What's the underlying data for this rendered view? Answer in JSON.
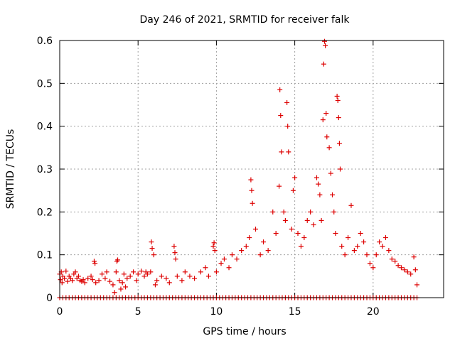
{
  "chart_data": {
    "type": "scatter",
    "title": "Day 246 of 2021, SRMTID for receiver falk",
    "xlabel": "GPS time / hours",
    "ylabel": "SRMTID / TECUs",
    "xlim": [
      0,
      24.5
    ],
    "ylim": [
      0,
      0.6
    ],
    "xticks": [
      0,
      5,
      10,
      15,
      20
    ],
    "yticks": [
      0,
      0.1,
      0.2,
      0.3,
      0.4,
      0.5,
      0.6
    ],
    "xtick_labels": [
      "0",
      "5",
      "10",
      "15",
      "20"
    ],
    "ytick_labels": [
      "0",
      "0.1",
      "0.2",
      "0.3",
      "0.4",
      "0.5",
      "0.6"
    ],
    "grid": true,
    "marker": "+",
    "marker_color": "#dd0000",
    "series": [
      {
        "name": "SRMTID",
        "points": [
          [
            0.0,
            0.055
          ],
          [
            0.05,
            0.042
          ],
          [
            0.1,
            0.06
          ],
          [
            0.15,
            0.035
          ],
          [
            0.2,
            0.05
          ],
          [
            0.3,
            0.045
          ],
          [
            0.4,
            0.062
          ],
          [
            0.5,
            0.038
          ],
          [
            0.6,
            0.05
          ],
          [
            0.7,
            0.045
          ],
          [
            0.8,
            0.04
          ],
          [
            0.9,
            0.055
          ],
          [
            1.0,
            0.06
          ],
          [
            1.1,
            0.045
          ],
          [
            1.2,
            0.05
          ],
          [
            1.3,
            0.04
          ],
          [
            1.4,
            0.038
          ],
          [
            1.5,
            0.042
          ],
          [
            1.6,
            0.035
          ],
          [
            1.8,
            0.045
          ],
          [
            2.0,
            0.05
          ],
          [
            2.1,
            0.042
          ],
          [
            2.2,
            0.085
          ],
          [
            2.25,
            0.08
          ],
          [
            2.3,
            0.035
          ],
          [
            2.5,
            0.04
          ],
          [
            2.7,
            0.055
          ],
          [
            2.9,
            0.045
          ],
          [
            3.0,
            0.06
          ],
          [
            3.2,
            0.038
          ],
          [
            3.4,
            0.03
          ],
          [
            3.5,
            0.012
          ],
          [
            3.6,
            0.06
          ],
          [
            3.65,
            0.085
          ],
          [
            3.7,
            0.088
          ],
          [
            3.8,
            0.04
          ],
          [
            3.9,
            0.02
          ],
          [
            4.0,
            0.035
          ],
          [
            4.1,
            0.055
          ],
          [
            4.2,
            0.025
          ],
          [
            4.3,
            0.045
          ],
          [
            4.5,
            0.05
          ],
          [
            4.7,
            0.06
          ],
          [
            4.9,
            0.04
          ],
          [
            5.0,
            0.055
          ],
          [
            5.2,
            0.062
          ],
          [
            5.4,
            0.05
          ],
          [
            5.5,
            0.06
          ],
          [
            5.6,
            0.055
          ],
          [
            5.8,
            0.06
          ],
          [
            5.85,
            0.13
          ],
          [
            5.9,
            0.115
          ],
          [
            6.0,
            0.1
          ],
          [
            6.1,
            0.03
          ],
          [
            6.2,
            0.04
          ],
          [
            6.5,
            0.05
          ],
          [
            6.8,
            0.045
          ],
          [
            7.0,
            0.035
          ],
          [
            7.3,
            0.12
          ],
          [
            7.35,
            0.105
          ],
          [
            7.4,
            0.09
          ],
          [
            7.5,
            0.05
          ],
          [
            7.8,
            0.04
          ],
          [
            8.0,
            0.06
          ],
          [
            8.3,
            0.05
          ],
          [
            8.6,
            0.045
          ],
          [
            9.0,
            0.06
          ],
          [
            9.3,
            0.07
          ],
          [
            9.5,
            0.05
          ],
          [
            9.8,
            0.12
          ],
          [
            9.85,
            0.128
          ],
          [
            9.9,
            0.11
          ],
          [
            10.0,
            0.06
          ],
          [
            10.3,
            0.08
          ],
          [
            10.5,
            0.09
          ],
          [
            10.8,
            0.07
          ],
          [
            11.0,
            0.1
          ],
          [
            11.3,
            0.09
          ],
          [
            11.6,
            0.11
          ],
          [
            11.9,
            0.12
          ],
          [
            12.1,
            0.14
          ],
          [
            12.2,
            0.275
          ],
          [
            12.25,
            0.25
          ],
          [
            12.3,
            0.22
          ],
          [
            12.5,
            0.16
          ],
          [
            12.8,
            0.1
          ],
          [
            13.0,
            0.13
          ],
          [
            13.3,
            0.11
          ],
          [
            13.6,
            0.2
          ],
          [
            13.8,
            0.15
          ],
          [
            14.0,
            0.26
          ],
          [
            14.05,
            0.485
          ],
          [
            14.1,
            0.425
          ],
          [
            14.15,
            0.34
          ],
          [
            14.3,
            0.2
          ],
          [
            14.4,
            0.18
          ],
          [
            14.5,
            0.455
          ],
          [
            14.55,
            0.4
          ],
          [
            14.6,
            0.34
          ],
          [
            14.8,
            0.16
          ],
          [
            14.9,
            0.25
          ],
          [
            15.0,
            0.28
          ],
          [
            15.2,
            0.15
          ],
          [
            15.4,
            0.12
          ],
          [
            15.6,
            0.14
          ],
          [
            15.8,
            0.18
          ],
          [
            16.0,
            0.2
          ],
          [
            16.2,
            0.17
          ],
          [
            16.4,
            0.28
          ],
          [
            16.5,
            0.265
          ],
          [
            16.6,
            0.24
          ],
          [
            16.7,
            0.18
          ],
          [
            16.8,
            0.415
          ],
          [
            16.85,
            0.545
          ],
          [
            16.9,
            0.598
          ],
          [
            16.95,
            0.588
          ],
          [
            17.0,
            0.43
          ],
          [
            17.05,
            0.375
          ],
          [
            17.2,
            0.35
          ],
          [
            17.3,
            0.29
          ],
          [
            17.4,
            0.24
          ],
          [
            17.5,
            0.2
          ],
          [
            17.6,
            0.15
          ],
          [
            17.7,
            0.47
          ],
          [
            17.75,
            0.46
          ],
          [
            17.8,
            0.42
          ],
          [
            17.85,
            0.36
          ],
          [
            17.9,
            0.3
          ],
          [
            18.0,
            0.12
          ],
          [
            18.2,
            0.1
          ],
          [
            18.4,
            0.14
          ],
          [
            18.6,
            0.215
          ],
          [
            18.8,
            0.11
          ],
          [
            19.0,
            0.12
          ],
          [
            19.2,
            0.15
          ],
          [
            19.4,
            0.13
          ],
          [
            19.6,
            0.1
          ],
          [
            19.8,
            0.08
          ],
          [
            20.0,
            0.07
          ],
          [
            20.2,
            0.1
          ],
          [
            20.4,
            0.13
          ],
          [
            20.6,
            0.12
          ],
          [
            20.8,
            0.14
          ],
          [
            21.0,
            0.11
          ],
          [
            21.2,
            0.09
          ],
          [
            21.4,
            0.085
          ],
          [
            21.6,
            0.075
          ],
          [
            21.8,
            0.07
          ],
          [
            22.0,
            0.065
          ],
          [
            22.2,
            0.06
          ],
          [
            22.4,
            0.055
          ],
          [
            22.6,
            0.095
          ],
          [
            22.7,
            0.065
          ],
          [
            22.8,
            0.03
          ]
        ]
      },
      {
        "name": "zero baseline",
        "x_range": [
          0.0,
          22.8
        ],
        "x_step": 0.2,
        "y": 0
      }
    ]
  }
}
